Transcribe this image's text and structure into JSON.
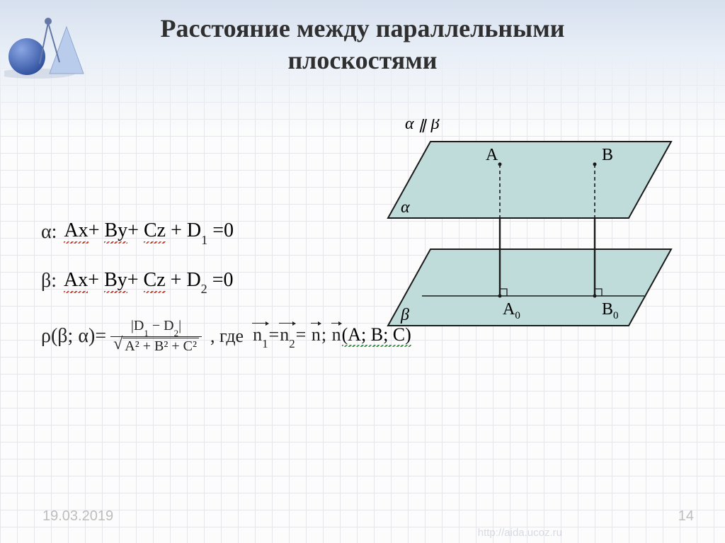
{
  "title_line1": "Расстояние между параллельными",
  "title_line2": "плоскостями",
  "title_fontsize": 36,
  "title_color": "#2f2f2f",
  "shapes": {
    "sphere_color": "#4a6fc0",
    "cone_color": "#b9cceb",
    "compass_color": "#7a8eb9"
  },
  "equations": {
    "alpha_label": "α:",
    "beta_label": "β:",
    "eq_alpha_parts": [
      {
        "t": "Ax",
        "u": "red"
      },
      {
        "t": "+ "
      },
      {
        "t": "By",
        "u": "red"
      },
      {
        "t": "+ "
      },
      {
        "t": "Cz",
        "u": "red"
      },
      {
        "t": " + D"
      },
      {
        "t": "1",
        "sub": true
      },
      {
        "t": " =0"
      }
    ],
    "eq_beta_parts": [
      {
        "t": "Ax",
        "u": "red"
      },
      {
        "t": "+ "
      },
      {
        "t": "By",
        "u": "red"
      },
      {
        "t": "+ "
      },
      {
        "t": "Cz",
        "u": "red"
      },
      {
        "t": " + D"
      },
      {
        "t": "2",
        "sub": true
      },
      {
        "t": " =0"
      }
    ],
    "rho_label": "ρ(β; α)=",
    "frac_num_parts": [
      "|D",
      "1",
      " − D",
      "2",
      "|"
    ],
    "frac_den": "A² + B² + C²",
    "where_label": ", где",
    "vec_eq": {
      "n1": "n",
      "n1_sub": "1",
      "n2": "n",
      "n2_sub": "2",
      "n": "n",
      "coords": "(A; B; C)"
    }
  },
  "diagram": {
    "parallel_label": "α ∥ β",
    "A": "A",
    "B": "B",
    "A0": "A",
    "A0_sub": "0",
    "B0": "B",
    "B0_sub": "0",
    "alpha": "α",
    "beta": "β",
    "plane_fill": "#bfdbda",
    "plane_stroke": "#1a1a1a",
    "text_font": "22px Times New Roman"
  },
  "footer": {
    "date": "19.03.2019",
    "page": "14",
    "watermark": "http://aida.ucoz.ru"
  },
  "grid": {
    "cell": 24,
    "line": "#e6e6ea",
    "bg": "#fcfcfc"
  }
}
